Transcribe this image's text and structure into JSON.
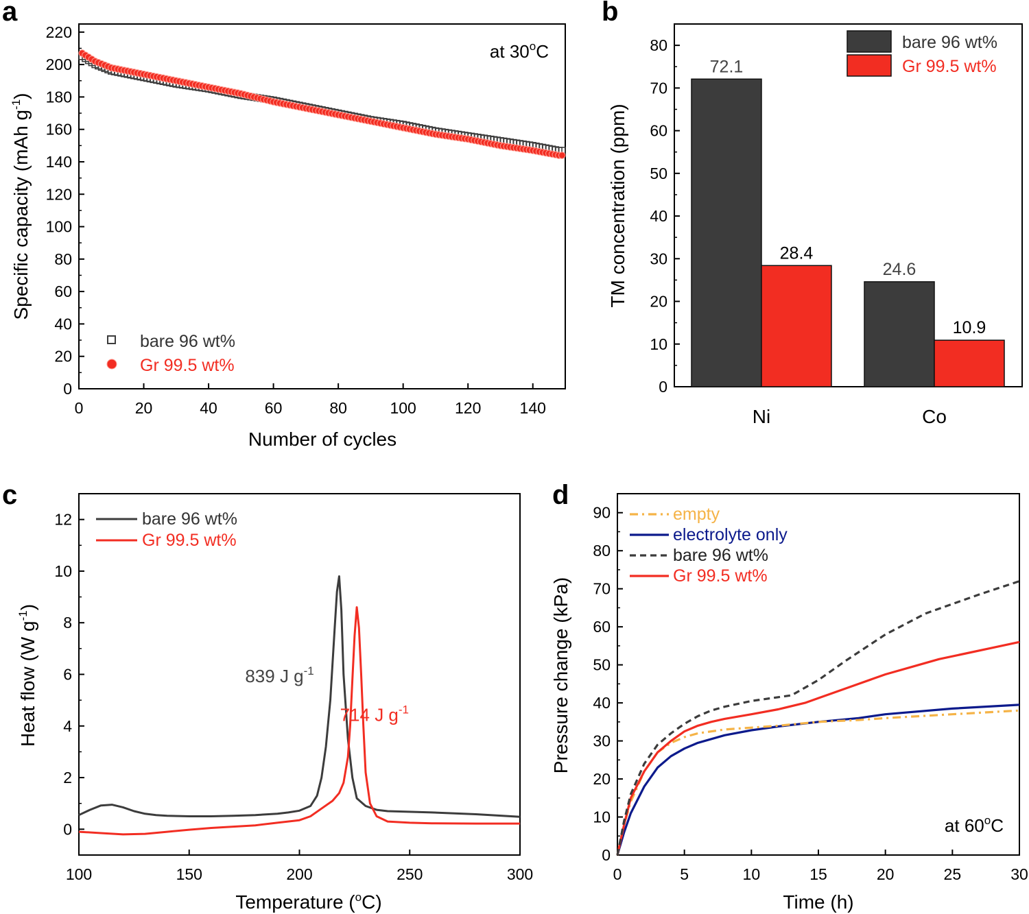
{
  "panels": [
    {
      "label": "a"
    },
    {
      "label": "b"
    },
    {
      "label": "c"
    },
    {
      "label": "d"
    }
  ],
  "colors": {
    "bare": "#3c3c3c",
    "gr": "#f22d22",
    "empty": "#f5b347",
    "electrolyte": "#0c1a8c"
  },
  "chart_data": [
    {
      "type": "scatter",
      "panel": "a",
      "xlabel": "Number of cycles",
      "ylabel": "Specific capacity (mAh g",
      "ylabel_sup": "-1",
      "ylabel_end": ")",
      "xlim": [
        0,
        150
      ],
      "ylim": [
        0,
        225
      ],
      "xticks": [
        0,
        20,
        40,
        60,
        80,
        100,
        120,
        140
      ],
      "yticks": [
        0,
        20,
        40,
        60,
        80,
        100,
        120,
        140,
        160,
        180,
        200,
        220
      ],
      "annotation": "at 30",
      "annotation_sup": "o",
      "annotation_end": "C",
      "legend_position": "bottom-left",
      "series": [
        {
          "name": "bare 96 wt%",
          "marker": "open-square",
          "x": [
            1,
            5,
            10,
            20,
            30,
            40,
            50,
            60,
            70,
            80,
            90,
            100,
            110,
            120,
            130,
            140,
            148
          ],
          "y": [
            205,
            200,
            196,
            192,
            188,
            185,
            181,
            178,
            174,
            170,
            166,
            163,
            159,
            156,
            153,
            150,
            147
          ]
        },
        {
          "name": "Gr 99.5 wt%",
          "marker": "filled-circle",
          "x": [
            1,
            5,
            10,
            20,
            30,
            40,
            50,
            60,
            70,
            80,
            90,
            100,
            110,
            120,
            130,
            140,
            148
          ],
          "y": [
            207,
            202,
            198,
            194,
            190,
            186,
            182,
            177,
            173,
            169,
            165,
            161,
            157,
            154,
            150,
            147,
            144
          ]
        }
      ]
    },
    {
      "type": "bar",
      "panel": "b",
      "categories": [
        "Ni",
        "Co"
      ],
      "ylabel": "TM concentration (ppm)",
      "ylim": [
        0,
        85
      ],
      "yticks": [
        0,
        10,
        20,
        30,
        40,
        50,
        60,
        70,
        80
      ],
      "legend_position": "top-right",
      "series": [
        {
          "name": "bare 96 wt%",
          "values": [
            72.1,
            24.6
          ],
          "labels": [
            "72.1",
            "24.6"
          ]
        },
        {
          "name": "Gr 99.5 wt%",
          "values": [
            28.4,
            10.9
          ],
          "labels": [
            "28.4",
            "10.9"
          ]
        }
      ]
    },
    {
      "type": "line",
      "panel": "c",
      "xlabel": "Temperature (",
      "xlabel_sup": "o",
      "xlabel_end": "C)",
      "ylabel": "Heat flow (W g",
      "ylabel_sup": "-1",
      "ylabel_end": ")",
      "xlim": [
        100,
        300
      ],
      "ylim": [
        -1,
        13
      ],
      "xticks": [
        100,
        150,
        200,
        250,
        300
      ],
      "yticks": [
        0,
        2,
        4,
        6,
        8,
        10,
        12
      ],
      "legend_position": "top-left",
      "annotations": [
        {
          "text": "839 J g",
          "sup": "-1",
          "x": 191,
          "y": 5.7,
          "series": 0
        },
        {
          "text": "714 J g",
          "sup": "-1",
          "x": 234,
          "y": 4.2,
          "series": 1
        }
      ],
      "series": [
        {
          "name": "bare 96 wt%",
          "x": [
            100,
            105,
            110,
            115,
            120,
            125,
            130,
            135,
            140,
            150,
            160,
            170,
            180,
            190,
            195,
            200,
            205,
            208,
            210,
            212,
            214,
            216,
            217,
            218,
            219,
            220,
            222,
            224,
            226,
            230,
            235,
            240,
            260,
            280,
            300
          ],
          "y": [
            0.55,
            0.75,
            0.92,
            0.95,
            0.85,
            0.7,
            0.6,
            0.55,
            0.52,
            0.5,
            0.5,
            0.52,
            0.55,
            0.6,
            0.65,
            0.72,
            0.9,
            1.3,
            2.0,
            3.2,
            5.0,
            7.8,
            9.2,
            9.8,
            8.5,
            6.0,
            3.5,
            2.0,
            1.2,
            0.9,
            0.75,
            0.7,
            0.65,
            0.58,
            0.48
          ]
        },
        {
          "name": "Gr 99.5 wt%",
          "x": [
            100,
            110,
            120,
            130,
            140,
            150,
            160,
            170,
            180,
            190,
            200,
            205,
            210,
            215,
            218,
            220,
            222,
            223,
            224,
            225,
            226,
            227,
            228,
            229,
            230,
            232,
            235,
            240,
            250,
            260,
            280,
            300
          ],
          "y": [
            -0.1,
            -0.15,
            -0.2,
            -0.18,
            -0.1,
            -0.02,
            0.05,
            0.1,
            0.15,
            0.25,
            0.35,
            0.5,
            0.8,
            1.1,
            1.4,
            1.8,
            2.8,
            4.0,
            5.8,
            7.5,
            8.6,
            7.8,
            6.0,
            4.0,
            2.2,
            1.0,
            0.5,
            0.3,
            0.25,
            0.23,
            0.22,
            0.22
          ]
        }
      ]
    },
    {
      "type": "line",
      "panel": "d",
      "xlabel": "Time (h)",
      "ylabel": "Pressure change (kPa)",
      "xlim": [
        0,
        30
      ],
      "ylim": [
        0,
        95
      ],
      "xticks": [
        0,
        5,
        10,
        15,
        20,
        25,
        30
      ],
      "yticks": [
        0,
        10,
        20,
        30,
        40,
        50,
        60,
        70,
        80,
        90
      ],
      "annotation": "at 60",
      "annotation_sup": "o",
      "annotation_end": "C",
      "legend_position": "top-left",
      "series": [
        {
          "name": "empty",
          "style": "dash-dot",
          "x": [
            0,
            0.5,
            1,
            2,
            3,
            4,
            5,
            6,
            8,
            10,
            12,
            15,
            18,
            20,
            25,
            30
          ],
          "y": [
            0,
            8,
            14,
            22,
            27,
            29.5,
            31,
            32,
            33,
            33.5,
            34,
            35,
            35.5,
            36,
            37,
            38
          ]
        },
        {
          "name": "electrolyte only",
          "style": "solid",
          "x": [
            0,
            0.5,
            1,
            2,
            3,
            4,
            5,
            6,
            8,
            10,
            12,
            15,
            18,
            20,
            25,
            30
          ],
          "y": [
            0,
            6,
            11,
            18,
            23,
            26,
            28,
            29.5,
            31.5,
            32.8,
            33.8,
            35,
            36,
            37,
            38.5,
            39.5
          ]
        },
        {
          "name": "bare 96 wt%",
          "style": "dashed",
          "x": [
            0,
            0.5,
            1,
            2,
            3,
            4,
            5,
            6,
            7,
            8,
            10,
            12,
            13,
            15,
            17,
            20,
            23,
            25,
            27,
            30
          ],
          "y": [
            0,
            9,
            16,
            24,
            29,
            32,
            34.5,
            36.5,
            38,
            39,
            40.5,
            41.5,
            42,
            46,
            51,
            58,
            63.5,
            66,
            68.5,
            72
          ]
        },
        {
          "name": "Gr 99.5 wt%",
          "style": "solid",
          "x": [
            0,
            0.5,
            1,
            2,
            3,
            4,
            5,
            6,
            7,
            8,
            10,
            12,
            14,
            16,
            18,
            20,
            22,
            24,
            26,
            28,
            30
          ],
          "y": [
            0,
            8,
            15,
            22,
            27,
            30,
            32.5,
            34,
            35,
            35.8,
            37,
            38.3,
            40,
            42.5,
            45,
            47.5,
            49.5,
            51.5,
            53,
            54.5,
            56
          ]
        }
      ]
    }
  ]
}
